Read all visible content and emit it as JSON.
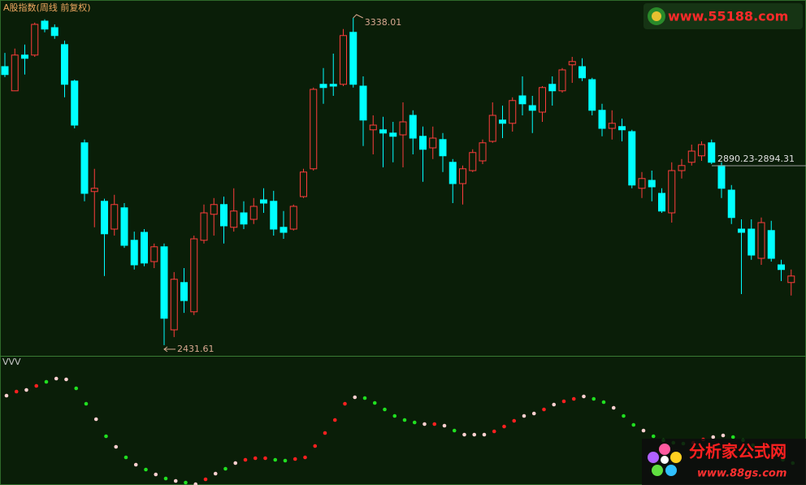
{
  "chart_data": [
    {
      "type": "candlestick",
      "title": "A股指数(周线 前复权)",
      "series": [
        {
          "up_color": "#ff3c3c",
          "down_color": "#00ffff",
          "open": [
            3203,
            3136,
            3235,
            3235,
            3329,
            3311,
            3264,
            3163,
            2992,
            2857,
            2830,
            2753,
            2812,
            2722,
            2744,
            2663,
            2704,
            2474,
            2605,
            2524,
            2722,
            2794,
            2821,
            2758,
            2798,
            2780,
            2834,
            2830,
            2758,
            2753,
            2843,
            2920,
            3154,
            3154,
            3154,
            3298,
            3149,
            3028,
            3028,
            3019,
            3014,
            3068,
            3010,
            2978,
            3001,
            2938,
            2879,
            2915,
            2942,
            2996,
            3055,
            3046,
            3122,
            3095,
            3077,
            3154,
            3136,
            3208,
            3203,
            3167,
            3082,
            3032,
            3037,
            3023,
            2866,
            2888,
            2852,
            2798,
            2915,
            2938,
            2956,
            2992,
            2929,
            2861,
            2753,
            2753,
            2672,
            2749,
            2654,
            2605
          ],
          "high": [
            3241,
            3253,
            3264,
            3325,
            3334,
            3320,
            3275,
            3167,
            3001,
            2920,
            2837,
            2848,
            2825,
            2746,
            2753,
            2713,
            2713,
            2634,
            2645,
            2735,
            2821,
            2839,
            2843,
            2866,
            2830,
            2839,
            2866,
            2859,
            2803,
            2821,
            2920,
            3145,
            3199,
            3239,
            3307,
            3338.01,
            3176,
            3068,
            3064,
            3050,
            3104,
            3082,
            3037,
            3037,
            3019,
            2947,
            2929,
            2974,
            3001,
            3104,
            3095,
            3118,
            3176,
            3122,
            3149,
            3176,
            3199,
            3230,
            3226,
            3172,
            3100,
            3082,
            3059,
            3028,
            2911,
            2915,
            2866,
            2938,
            2947,
            2987,
            2996,
            3001,
            2938,
            2875,
            2780,
            2780,
            2785,
            2776,
            2668,
            2641
          ],
          "low": [
            3174,
            3136,
            3181,
            3230,
            3298,
            3280,
            3118,
            3032,
            2830,
            2758,
            2623,
            2735,
            2701,
            2641,
            2650,
            2645,
            2431.61,
            2454,
            2521,
            2515,
            2713,
            2735,
            2713,
            2746,
            2753,
            2767,
            2798,
            2735,
            2726,
            2749,
            2839,
            2915,
            3100,
            3122,
            3149,
            3145,
            2983,
            2960,
            2924,
            2938,
            2924,
            2960,
            2884,
            2947,
            2911,
            2825,
            2821,
            2911,
            2933,
            2992,
            3005,
            3023,
            3068,
            3019,
            3050,
            3095,
            3131,
            3158,
            3163,
            3068,
            3010,
            3001,
            2996,
            2866,
            2839,
            2830,
            2798,
            2771,
            2893,
            2929,
            2942,
            2933,
            2839,
            2767,
            2573,
            2668,
            2654,
            2663,
            2609,
            2569
          ],
          "close": [
            3181,
            3235,
            3226,
            3320,
            3307,
            3289,
            3154,
            3041,
            2852,
            2866,
            2740,
            2821,
            2708,
            2654,
            2659,
            2704,
            2506,
            2614,
            2555,
            2726,
            2798,
            2821,
            2762,
            2803,
            2767,
            2816,
            2825,
            2753,
            2744,
            2816,
            2911,
            3140,
            3145,
            3149,
            3289,
            3154,
            3055,
            3041,
            3019,
            3010,
            3050,
            3005,
            2974,
            3005,
            2956,
            2879,
            2920,
            2965,
            2992,
            3068,
            3046,
            3109,
            3100,
            3082,
            3145,
            3136,
            3194,
            3217,
            3172,
            3082,
            3032,
            3046,
            3028,
            2875,
            2893,
            2870,
            2803,
            2915,
            2929,
            2969,
            2987,
            2938,
            2866,
            2785,
            2744,
            2681,
            2771,
            2672,
            2641,
            2623
          ]
        }
      ],
      "ylim": [
        2402,
        3387.5
      ],
      "annotations": [
        "3338.01",
        "2431.61",
        "2890.23-2894.31"
      ]
    },
    {
      "type": "dots",
      "title": "VVV",
      "values": [
        110,
        115,
        117,
        122,
        127,
        131,
        130,
        119,
        100,
        81,
        60,
        47,
        34,
        25,
        19,
        13,
        8,
        5,
        3,
        1,
        7,
        14,
        20,
        27,
        31,
        33,
        33,
        31,
        30,
        32,
        34,
        48,
        64,
        80,
        100,
        108,
        107,
        101,
        93,
        85,
        80,
        77,
        75,
        75,
        73,
        67,
        62,
        62,
        62,
        66,
        72,
        79,
        85,
        88,
        93,
        99,
        103,
        106,
        109,
        106,
        102,
        95,
        85,
        74,
        67,
        60,
        55,
        52,
        51,
        52,
        56,
        59,
        61,
        59,
        55,
        49,
        42,
        36,
        31,
        27
      ],
      "colors": [
        "#ffd0d0",
        "#ff2020",
        "#ffd0d0",
        "#ff2020",
        "#20e020",
        "#ffd0d0",
        "#ffd0d0",
        "#20e020",
        "#20e020",
        "#ffd0d0",
        "#20e020",
        "#ffd0d0",
        "#20e020",
        "#ffd0d0",
        "#20e020",
        "#ffd0d0",
        "#20e020",
        "#ffd0d0",
        "#20e020",
        "#ffd0d0",
        "#ff2020",
        "#ffd0d0",
        "#20e020",
        "#ffd0d0",
        "#ff2020",
        "#ff2020",
        "#ff2020",
        "#20e020",
        "#20e020",
        "#ff2020",
        "#ff2020",
        "#ff2020",
        "#ff2020",
        "#ff2020",
        "#ff2020",
        "#ffd0d0",
        "#20e020",
        "#20e020",
        "#20e020",
        "#20e020",
        "#20e020",
        "#20e020",
        "#ffd0d0",
        "#ff2020",
        "#ffd0d0",
        "#20e020",
        "#ffd0d0",
        "#ffd0d0",
        "#ffd0d0",
        "#ff2020",
        "#ff2020",
        "#ff2020",
        "#ffd0d0",
        "#ffd0d0",
        "#ff2020",
        "#ffd0d0",
        "#ff2020",
        "#ff2020",
        "#ffd0d0",
        "#20e020",
        "#20e020",
        "#ffd0d0",
        "#20e020",
        "#20e020",
        "#ffd0d0",
        "#20e020",
        "#20e020",
        "#20e020",
        "#20e020",
        "#ff2020",
        "#ff2020",
        "#ffd0d0",
        "#ffd0d0",
        "#20e020",
        "#20e020",
        "#20e020",
        "#20e020",
        "#20e020",
        "#20e020",
        "#20e020"
      ],
      "ylim": [
        0,
        159
      ]
    }
  ],
  "watermarks": {
    "top": "www.55188.com",
    "bottom_title": "分析家公式网",
    "bottom_url": "www.88gs.com"
  }
}
